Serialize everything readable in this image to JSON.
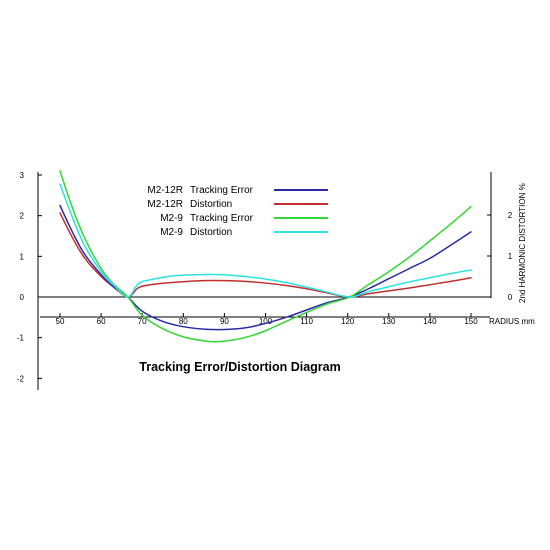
{
  "chart_data": {
    "type": "line",
    "title": "Tracking Error/Distortion Diagram",
    "xlabel": "RADIUS mm",
    "ylabel": "",
    "y2label": "2nd HARMONIC DISTORTION %",
    "xlim": [
      45,
      155
    ],
    "ylim": [
      -2,
      3
    ],
    "y2lim": [
      0,
      3
    ],
    "x_ticks": [
      "50",
      "60",
      "70",
      "80",
      "90",
      "100",
      "110",
      "120",
      "130",
      "140",
      "150"
    ],
    "y_ticks": [
      "3",
      "2",
      "1",
      "0",
      "-1",
      "-2"
    ],
    "y2_ticks": [
      "2",
      "1",
      "0"
    ],
    "grid": false,
    "legend_position": "top-center",
    "series": [
      {
        "name": "M2-12R  Tracking Error",
        "legend_label": "M2-12R",
        "legend_desc": "Tracking Error",
        "axis": "left",
        "color": "#2a2aa8",
        "x": [
          50,
          53,
          56,
          60,
          63,
          66.5,
          70,
          75,
          80,
          85,
          90,
          95,
          100,
          105,
          110,
          115,
          120.5,
          125,
          130,
          135,
          140,
          145,
          150
        ],
        "y": [
          2.25,
          1.6,
          1.05,
          0.55,
          0.25,
          0,
          -0.35,
          -0.6,
          -0.73,
          -0.79,
          -0.8,
          -0.76,
          -0.65,
          -0.5,
          -0.32,
          -0.14,
          0,
          0.2,
          0.45,
          0.7,
          0.95,
          1.27,
          1.6
        ]
      },
      {
        "name": "M2-12R  Distortion",
        "legend_label": "M2-12R",
        "legend_desc": "Distortion",
        "axis": "right",
        "color": "#c03030",
        "x": [
          50,
          53,
          56,
          60,
          63,
          66.5,
          69,
          72,
          78,
          85,
          90,
          95,
          100,
          105,
          110,
          115,
          120.5,
          125,
          130,
          135,
          140,
          145,
          150
        ],
        "y": [
          2.05,
          1.45,
          0.95,
          0.5,
          0.25,
          0,
          0.22,
          0.3,
          0.36,
          0.4,
          0.4,
          0.38,
          0.34,
          0.28,
          0.2,
          0.1,
          0,
          0.08,
          0.15,
          0.22,
          0.3,
          0.38,
          0.47
        ]
      },
      {
        "name": "M2-9  Tracking Error",
        "legend_label": "M2-9",
        "legend_desc": "Tracking Error",
        "axis": "left",
        "color": "#33d633",
        "x": [
          50,
          53,
          56,
          60,
          63,
          66.5,
          70,
          75,
          80,
          85,
          88,
          92,
          96,
          100,
          105,
          110,
          115,
          120.5,
          125,
          130,
          135,
          140,
          145,
          150
        ],
        "y": [
          3.1,
          2.2,
          1.45,
          0.7,
          0.32,
          0,
          -0.45,
          -0.78,
          -0.98,
          -1.08,
          -1.1,
          -1.06,
          -0.97,
          -0.83,
          -0.6,
          -0.38,
          -0.17,
          0,
          0.3,
          0.62,
          0.98,
          1.38,
          1.79,
          2.22
        ]
      },
      {
        "name": "M2-9  Distortion",
        "legend_label": "M2-9",
        "legend_desc": "Distortion",
        "axis": "right",
        "color": "#2ce2e2",
        "x": [
          50,
          53,
          56,
          60,
          63,
          66.5,
          69,
          72,
          78,
          85,
          90,
          95,
          100,
          105,
          110,
          115,
          120.5,
          125,
          130,
          135,
          140,
          145,
          150
        ],
        "y": [
          2.75,
          1.95,
          1.25,
          0.62,
          0.3,
          0,
          0.32,
          0.42,
          0.52,
          0.55,
          0.54,
          0.5,
          0.44,
          0.35,
          0.24,
          0.12,
          0,
          0.13,
          0.25,
          0.37,
          0.47,
          0.57,
          0.66
        ]
      }
    ]
  }
}
